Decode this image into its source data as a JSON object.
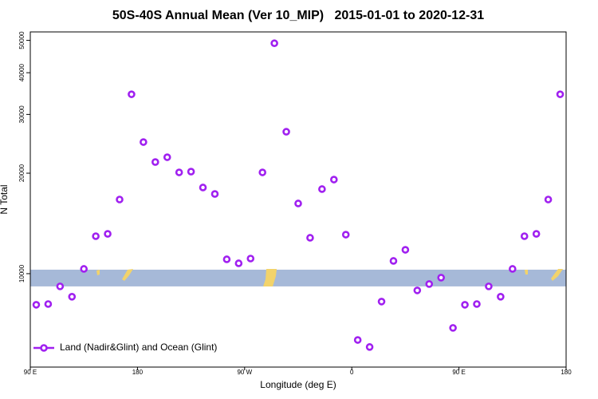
{
  "chart_data": {
    "type": "scatter",
    "title": "50S-40S Annual Mean (Ver 10_MIP)   2015-01-01 to 2020-12-31",
    "x_label": "Longitude (deg E)",
    "y_label": "N Total",
    "x": [
      95,
      105,
      115,
      125,
      135,
      145,
      155,
      165,
      175,
      185,
      195,
      205,
      215,
      225,
      235,
      245,
      255,
      265,
      275,
      285,
      295,
      305,
      315,
      325,
      335,
      345,
      355,
      365,
      375,
      385,
      395,
      405,
      415,
      425,
      435,
      445,
      455,
      465,
      475,
      485,
      495,
      505,
      515,
      525,
      535
    ],
    "series": [
      {
        "name": "Land (Nadir&Glint) and Ocean (Glint)",
        "color": "#a020f0",
        "values": [
          8070,
          8110,
          9160,
          8530,
          10335,
          12950,
          13160,
          16680,
          34470,
          24790,
          21600,
          22330,
          20110,
          20220,
          18120,
          17330,
          11040,
          10740,
          11100,
          20110,
          49010,
          26620,
          16230,
          12810,
          17920,
          19140,
          13090,
          6330,
          6030,
          8250,
          10920,
          11790,
          8910,
          9310,
          9730,
          6880,
          8070,
          8110,
          9160,
          8530,
          10335,
          12950,
          13160,
          16680,
          34470
        ]
      }
    ],
    "xlim": [
      90,
      540
    ],
    "xticks": [
      {
        "value": 90,
        "label": "90 E"
      },
      180,
      {
        "value": 270,
        "label": "90 W"
      },
      {
        "value": 360,
        "label": "0"
      },
      {
        "value": 450,
        "label": "90 E"
      },
      {
        "value": 540,
        "label": "180"
      }
    ],
    "ylim": [
      5250,
      53000
    ],
    "yticks": [
      10000,
      20000,
      30000,
      40000,
      50000
    ],
    "log_y": true,
    "grid": false,
    "legend": "bottom-left",
    "shaded_band": {
      "range": [
        9160,
        10280
      ],
      "color": "#a6b9d8"
    }
  }
}
